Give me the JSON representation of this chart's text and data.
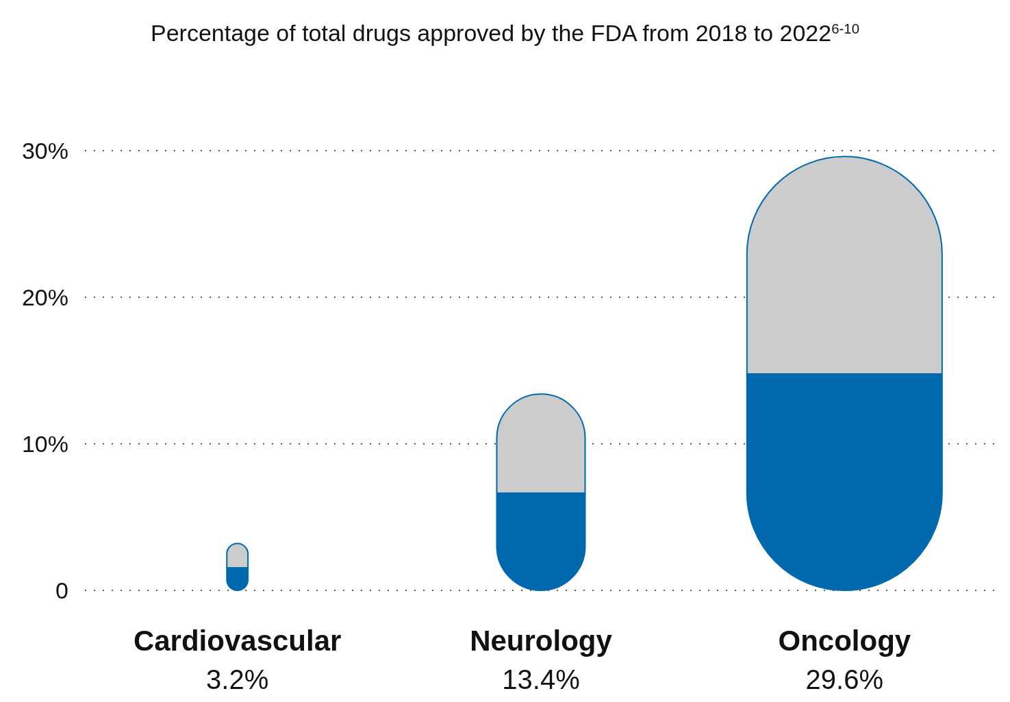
{
  "chart_data": {
    "type": "bar",
    "title": "Percentage of total drugs approved by the FDA from 2018 to 2022$^{6-10}$",
    "categories": [
      "Cardiovascular",
      "Neurology",
      "Oncology"
    ],
    "values": [
      3.2,
      13.4,
      29.6
    ],
    "value_labels": [
      "3.2%",
      "13.4%",
      "29.6%"
    ],
    "color": "#0069ae",
    "ylim": [
      0,
      30
    ],
    "yticks": [
      0,
      {
        "value": 10,
        "label": "10%"
      },
      {
        "value": 20,
        "label": "20%"
      },
      {
        "value": 30,
        "label": "30%"
      }
    ],
    "grid": "y"
  }
}
